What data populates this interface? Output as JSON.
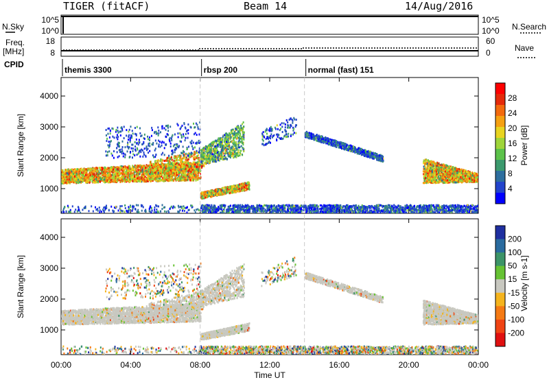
{
  "header": {
    "title": "TIGER (fitACF)",
    "beam": "Beam 14",
    "date": "14/Aug/2016"
  },
  "top_panels": {
    "nsky_label": "N.Sky",
    "nsearch_label": "N.Search",
    "nsky_ticks": [
      "10^5",
      "10^0"
    ],
    "freq_label": "Freq.",
    "freq_unit": "[MHz]",
    "freq_ticks": [
      "18",
      "8"
    ],
    "nave_label": "Nave",
    "nave_ticks": [
      "60",
      "0"
    ],
    "cpid_label": "CPID"
  },
  "cpid_segments": [
    {
      "label": "themis 3300",
      "start_hour": 0
    },
    {
      "label": "rbsp 200",
      "start_hour": 8
    },
    {
      "label": "normal (fast) 151",
      "start_hour": 14
    }
  ],
  "chart_data": [
    {
      "type": "heatmap",
      "name": "power",
      "ylabel": "Slant Range [km]",
      "ylim": [
        200,
        4600
      ],
      "yticks": [
        1000,
        2000,
        3000,
        4000
      ],
      "colorbar": {
        "label": "Power [dB]",
        "ticks": [
          "4",
          "8",
          "12",
          "16",
          "20",
          "24",
          "28"
        ],
        "range": [
          0,
          30
        ],
        "colors": [
          "#0000ff",
          "#2244cc",
          "#2d6e9e",
          "#3c9a6e",
          "#5cc24a",
          "#9fd53a",
          "#e8d420",
          "#f5a011",
          "#f36a0d",
          "#e52a0a",
          "#ff0000"
        ]
      }
    },
    {
      "type": "heatmap",
      "name": "velocity",
      "ylabel": "Slant Range [km]",
      "ylim": [
        200,
        4600
      ],
      "yticks": [
        1000,
        2000,
        3000,
        4000
      ],
      "colorbar": {
        "label": "Velocity [m s-1]",
        "ticks": [
          "200",
          "100",
          "50",
          "15",
          "-15",
          "-50",
          "-100",
          "-200"
        ],
        "colors": [
          "#1f2fa0",
          "#2a6b9f",
          "#3c9468",
          "#66c233",
          "#c8c8c0",
          "#f5b41e",
          "#f57a14",
          "#f04414",
          "#e01010"
        ]
      }
    }
  ],
  "x_axis": {
    "xlabel": "Time UT",
    "xlim": [
      0,
      24
    ],
    "tick_labels": [
      "00:00",
      "04:00",
      "08:00",
      "12:00",
      "16:00",
      "20:00",
      "00:00"
    ]
  }
}
